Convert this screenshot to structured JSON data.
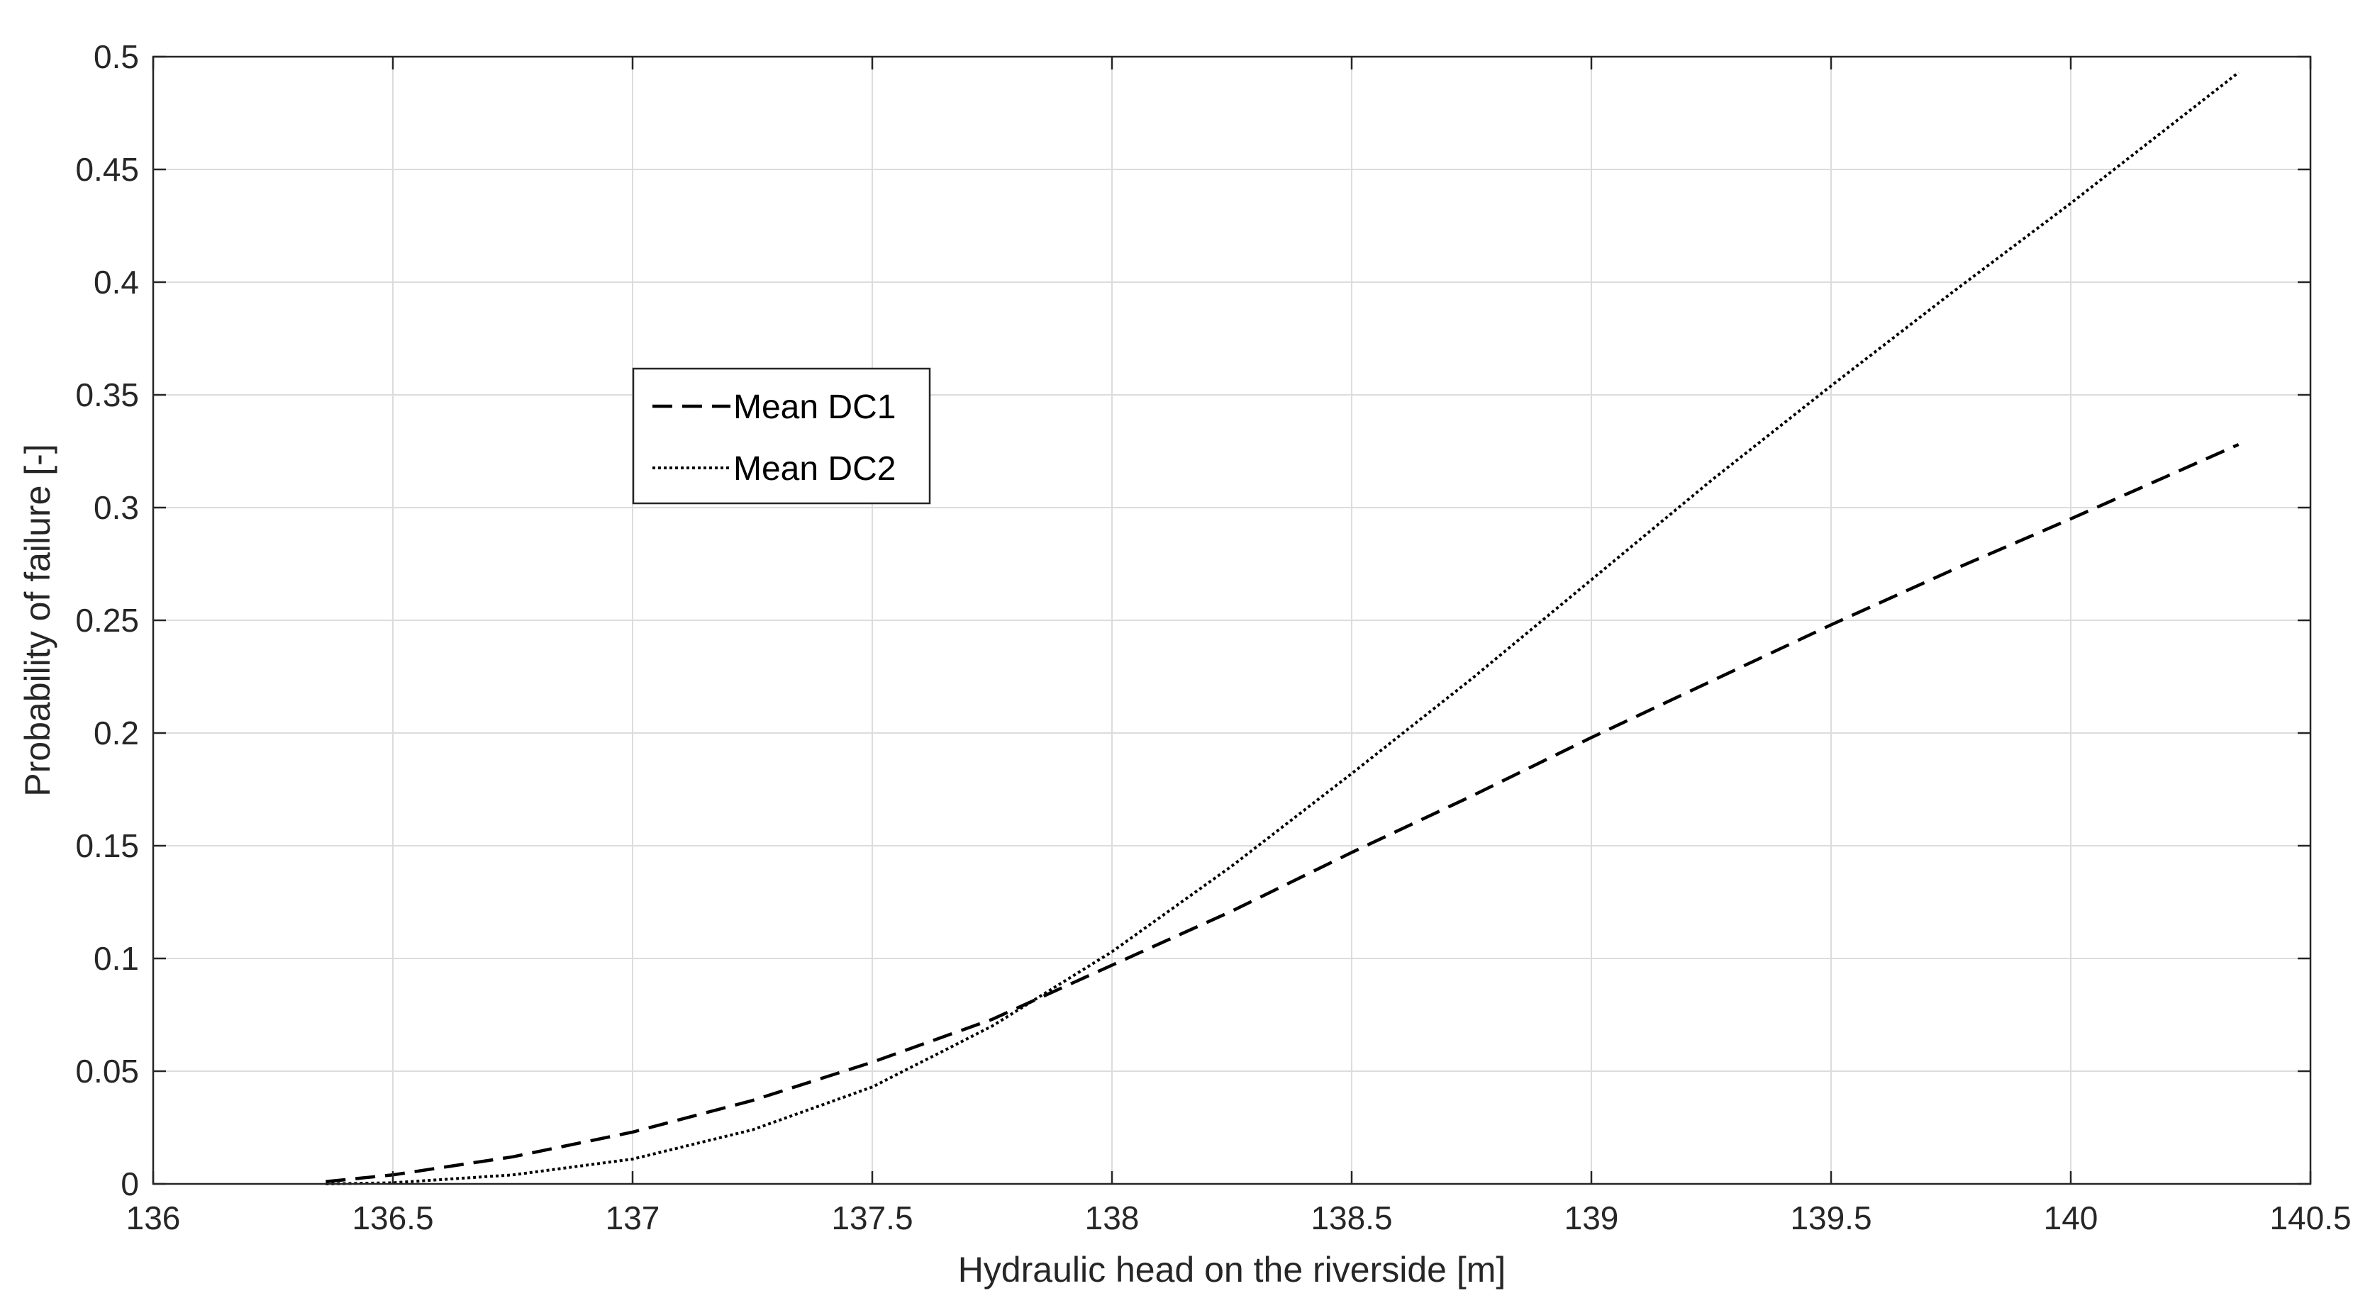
{
  "chart_data": {
    "type": "line",
    "title": "",
    "xlabel": "Hydraulic head on the riverside [m]",
    "ylabel": "Probability of failure [-]",
    "xlim": [
      136,
      140.5
    ],
    "ylim": [
      0,
      0.5
    ],
    "xticks": [
      136,
      136.5,
      137,
      137.5,
      138,
      138.5,
      139,
      139.5,
      140,
      140.5
    ],
    "xtick_labels": [
      "136",
      "136.5",
      "137",
      "137.5",
      "138",
      "138.5",
      "139",
      "139.5",
      "140",
      "140.5"
    ],
    "yticks": [
      0,
      0.05,
      0.1,
      0.15,
      0.2,
      0.25,
      0.3,
      0.35,
      0.4,
      0.45,
      0.5
    ],
    "ytick_labels": [
      "0",
      "0.05",
      "0.1",
      "0.15",
      "0.2",
      "0.25",
      "0.3",
      "0.35",
      "0.4",
      "0.45",
      "0.5"
    ],
    "grid": true,
    "legend_position": "upper-left-center",
    "series": [
      {
        "name": "Mean DC1",
        "line_style": "dashed",
        "color": "#000000",
        "x": [
          136.36,
          136.5,
          136.75,
          137,
          137.25,
          137.5,
          137.75,
          138,
          138.25,
          138.5,
          138.75,
          139,
          139.25,
          139.5,
          139.75,
          140,
          140.35
        ],
        "y": [
          0.001,
          0.004,
          0.012,
          0.023,
          0.037,
          0.054,
          0.073,
          0.097,
          0.121,
          0.147,
          0.172,
          0.198,
          0.223,
          0.248,
          0.272,
          0.295,
          0.328
        ]
      },
      {
        "name": "Mean DC2",
        "line_style": "dotted",
        "color": "#000000",
        "x": [
          136.36,
          136.5,
          136.75,
          137,
          137.25,
          137.5,
          137.75,
          138,
          138.25,
          138.5,
          138.75,
          139,
          139.25,
          139.5,
          139.75,
          140,
          140.35
        ],
        "y": [
          0.0,
          0.0005,
          0.004,
          0.011,
          0.024,
          0.043,
          0.07,
          0.103,
          0.141,
          0.182,
          0.224,
          0.268,
          0.312,
          0.354,
          0.395,
          0.435,
          0.493
        ]
      }
    ]
  }
}
